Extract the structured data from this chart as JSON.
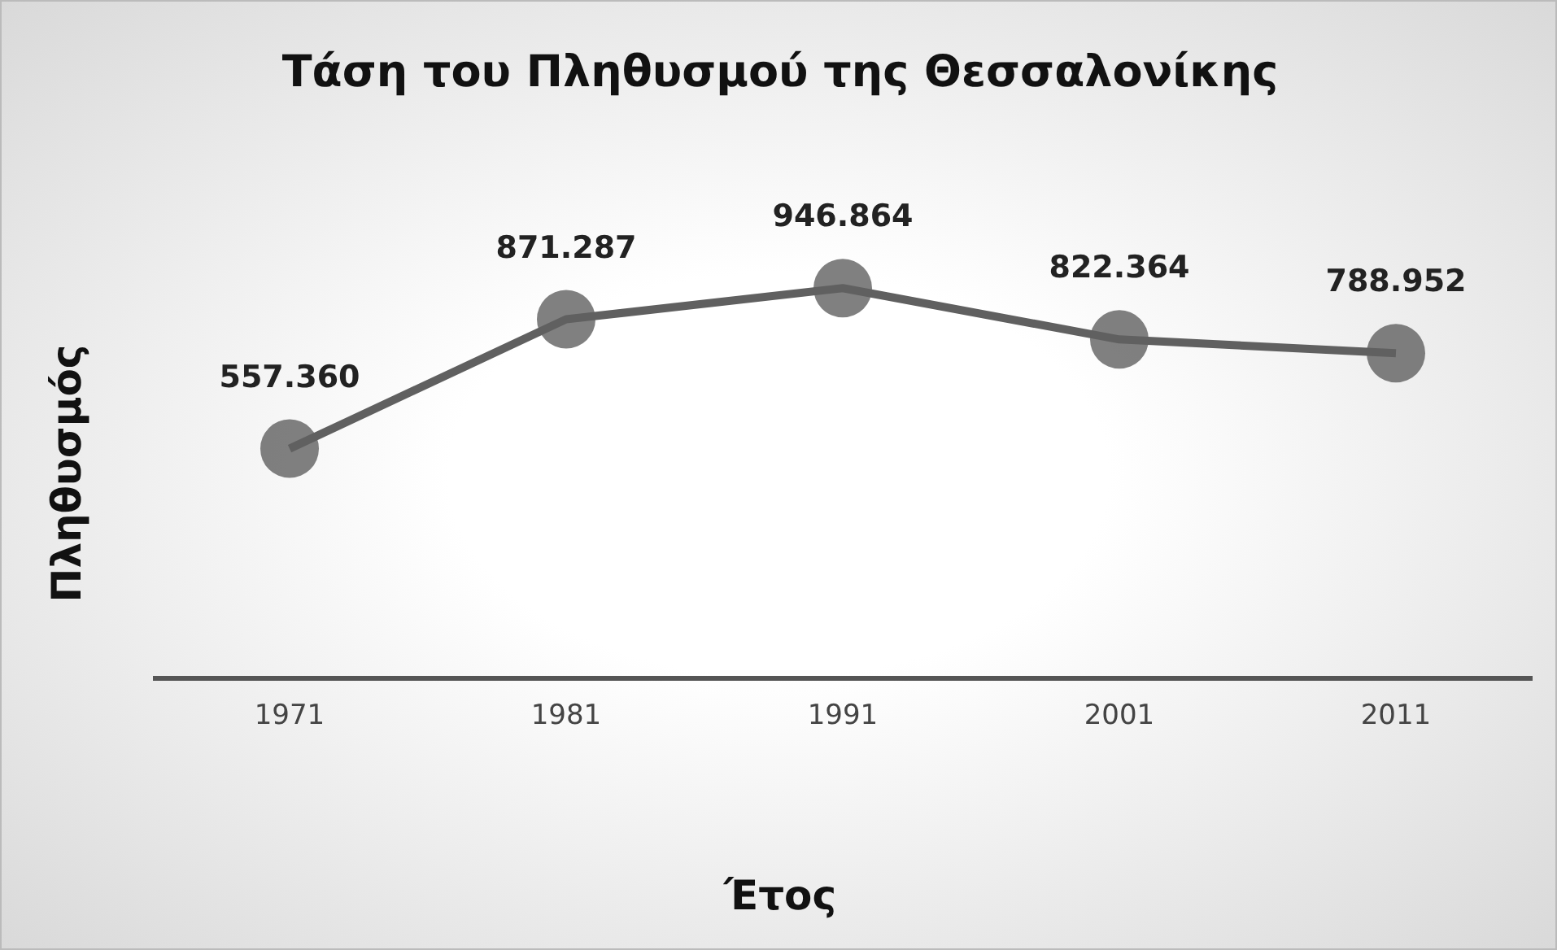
{
  "chart_data": {
    "type": "line",
    "title": "Τάση του Πληθυσμού της Θεσσαλονίκης",
    "xlabel": "Έτος",
    "ylabel": "Πληθυσμός",
    "categories": [
      "1971",
      "1981",
      "1991",
      "2001",
      "2011"
    ],
    "series": [
      {
        "color": "#606060",
        "values": [
          557360,
          871287,
          946864,
          822364,
          788952
        ],
        "value_labels": [
          "557.360",
          "871.287",
          "946.864",
          "822.364",
          "788.952"
        ]
      }
    ],
    "tick_labels": "x",
    "marker": "circle",
    "line_style": "solid",
    "legend": false
  }
}
